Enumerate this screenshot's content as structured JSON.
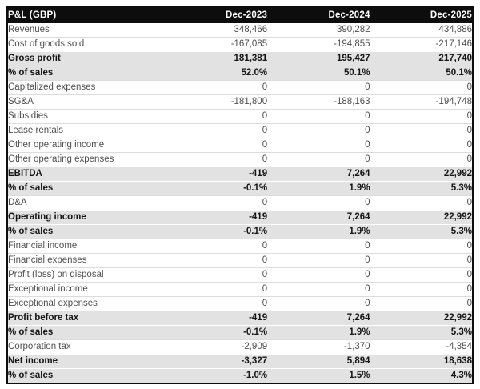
{
  "chart_data": {
    "type": "table",
    "title": "P&L (GBP)",
    "columns": [
      "Dec-2023",
      "Dec-2024",
      "Dec-2025"
    ],
    "rows": [
      {
        "label": "Revenues",
        "values": [
          "348,466",
          "390,282",
          "434,886"
        ],
        "emphasis": false
      },
      {
        "label": "Cost of goods sold",
        "values": [
          "-167,085",
          "-194,855",
          "-217,146"
        ],
        "emphasis": false
      },
      {
        "label": "Gross profit",
        "values": [
          "181,381",
          "195,427",
          "217,740"
        ],
        "emphasis": true
      },
      {
        "label": "% of sales",
        "values": [
          "52.0%",
          "50.1%",
          "50.1%"
        ],
        "emphasis": true
      },
      {
        "label": "Capitalized expenses",
        "values": [
          "0",
          "0",
          "0"
        ],
        "emphasis": false
      },
      {
        "label": "SG&A",
        "values": [
          "-181,800",
          "-188,163",
          "-194,748"
        ],
        "emphasis": false
      },
      {
        "label": "Subsidies",
        "values": [
          "0",
          "0",
          "0"
        ],
        "emphasis": false
      },
      {
        "label": "Lease rentals",
        "values": [
          "0",
          "0",
          "0"
        ],
        "emphasis": false
      },
      {
        "label": "Other operating income",
        "values": [
          "0",
          "0",
          "0"
        ],
        "emphasis": false
      },
      {
        "label": "Other operating expenses",
        "values": [
          "0",
          "0",
          "0"
        ],
        "emphasis": false
      },
      {
        "label": "EBITDA",
        "values": [
          "-419",
          "7,264",
          "22,992"
        ],
        "emphasis": true
      },
      {
        "label": "% of sales",
        "values": [
          "-0.1%",
          "1.9%",
          "5.3%"
        ],
        "emphasis": true
      },
      {
        "label": "D&A",
        "values": [
          "0",
          "0",
          "0"
        ],
        "emphasis": false
      },
      {
        "label": "Operating income",
        "values": [
          "-419",
          "7,264",
          "22,992"
        ],
        "emphasis": true
      },
      {
        "label": "% of sales",
        "values": [
          "-0.1%",
          "1.9%",
          "5.3%"
        ],
        "emphasis": true
      },
      {
        "label": "Financial income",
        "values": [
          "0",
          "0",
          "0"
        ],
        "emphasis": false
      },
      {
        "label": "Financial expenses",
        "values": [
          "0",
          "0",
          "0"
        ],
        "emphasis": false
      },
      {
        "label": "Profit (loss) on disposal",
        "values": [
          "0",
          "0",
          "0"
        ],
        "emphasis": false
      },
      {
        "label": "Exceptional income",
        "values": [
          "0",
          "0",
          "0"
        ],
        "emphasis": false
      },
      {
        "label": "Exceptional expenses",
        "values": [
          "0",
          "0",
          "0"
        ],
        "emphasis": false
      },
      {
        "label": "Profit before tax",
        "values": [
          "-419",
          "7,264",
          "22,992"
        ],
        "emphasis": true
      },
      {
        "label": "% of sales",
        "values": [
          "-0.1%",
          "1.9%",
          "5.3%"
        ],
        "emphasis": true
      },
      {
        "label": "Corporation tax",
        "values": [
          "-2,909",
          "-1,370",
          "-4,354"
        ],
        "emphasis": false
      },
      {
        "label": "Net income",
        "values": [
          "-3,327",
          "5,894",
          "18,638"
        ],
        "emphasis": true
      },
      {
        "label": "% of sales",
        "values": [
          "-1.0%",
          "1.5%",
          "4.3%"
        ],
        "emphasis": true
      }
    ]
  },
  "colors": {
    "header_bg": "#0d0d0d",
    "header_text": "#ffffff",
    "emphasis_bg": "#e2e2e2",
    "emphasis_text": "#141414",
    "normal_text": "#4f4f4f",
    "row_border": "#dcdcdc",
    "outer_border": "#0d0d0d"
  }
}
